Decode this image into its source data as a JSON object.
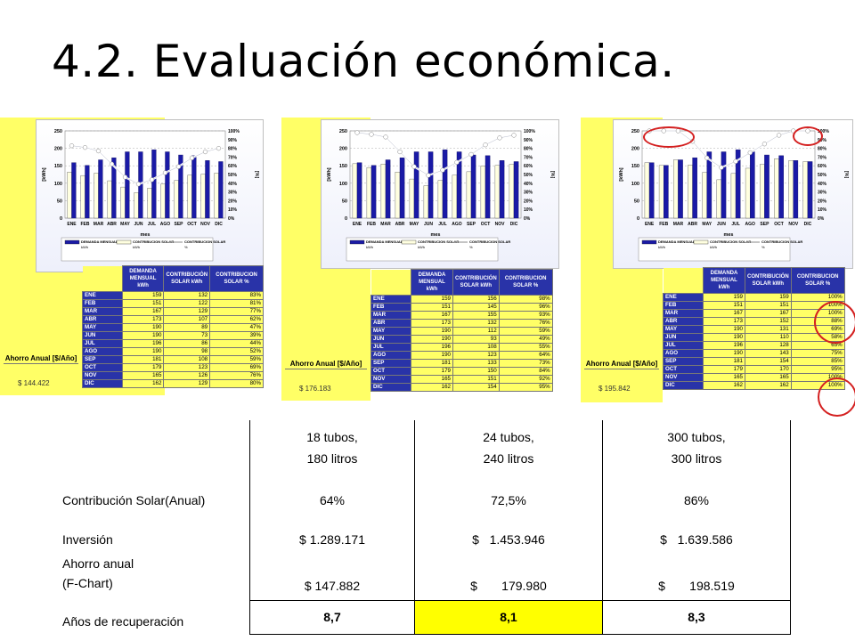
{
  "title": "4.2. Evaluación económica.",
  "chart_data": [
    {
      "type": "bar",
      "ylabel": "[kWh]",
      "y2label": "[%]",
      "xlabel": "mes",
      "ylim": [
        0,
        250
      ],
      "y2lim": [
        0,
        100
      ],
      "yticks": [
        "0",
        "50",
        "100",
        "150",
        "200",
        "250"
      ],
      "y2ticks": [
        "0%",
        "10%",
        "20%",
        "30%",
        "40%",
        "50%",
        "60%",
        "70%",
        "80%",
        "90%",
        "100%"
      ],
      "categories": [
        "ENE",
        "FEB",
        "MAR",
        "ABR",
        "MAY",
        "JUN",
        "JUL",
        "AGO",
        "SEP",
        "OCT",
        "NOV",
        "DIC"
      ],
      "series": [
        {
          "name": "DEMANDA MENSUAL",
          "unit": "kWh",
          "color": "#1a1aa6",
          "values": [
            159,
            151,
            167,
            173,
            190,
            190,
            196,
            190,
            181,
            179,
            165,
            162
          ]
        },
        {
          "name": "CONTRIBUCION SOLAR",
          "unit": "kWh",
          "color": "#ffffe0",
          "values": [
            132,
            122,
            129,
            107,
            89,
            73,
            86,
            98,
            108,
            123,
            126,
            129
          ]
        },
        {
          "name": "CONTRIBUCION SOLAR",
          "unit": "%",
          "color": "#ffffff",
          "values": [
            83,
            81,
            77,
            62,
            47,
            39,
            44,
            52,
            59,
            69,
            76,
            80
          ]
        }
      ],
      "table": {
        "headers": [
          "DEMANDA MENSUAL kWh",
          "CONTRIBUCIÓN SOLAR kWh",
          "CONTRIBUCION SOLAR %"
        ],
        "rows": [
          [
            "ENE",
            "159",
            "132",
            "83%"
          ],
          [
            "FEB",
            "151",
            "122",
            "81%"
          ],
          [
            "MAR",
            "167",
            "129",
            "77%"
          ],
          [
            "ABR",
            "173",
            "107",
            "62%"
          ],
          [
            "MAY",
            "190",
            "89",
            "47%"
          ],
          [
            "JUN",
            "190",
            "73",
            "39%"
          ],
          [
            "JUL",
            "196",
            "86",
            "44%"
          ],
          [
            "AGO",
            "190",
            "98",
            "52%"
          ],
          [
            "SEP",
            "181",
            "108",
            "59%"
          ],
          [
            "OCT",
            "179",
            "123",
            "69%"
          ],
          [
            "NOV",
            "165",
            "126",
            "76%"
          ],
          [
            "DIC",
            "162",
            "129",
            "80%"
          ]
        ]
      },
      "ahorro_label": "Ahorro Anual [$/Año]",
      "ahorro_value": "$ 144.422"
    },
    {
      "type": "bar",
      "ylabel": "[kWh]",
      "y2label": "[%]",
      "xlabel": "mes",
      "ylim": [
        0,
        250
      ],
      "y2lim": [
        0,
        100
      ],
      "yticks": [
        "0",
        "50",
        "100",
        "150",
        "200",
        "250"
      ],
      "y2ticks": [
        "0%",
        "10%",
        "20%",
        "30%",
        "40%",
        "50%",
        "60%",
        "70%",
        "80%",
        "90%",
        "100%"
      ],
      "categories": [
        "ENE",
        "FEB",
        "MAR",
        "ABR",
        "MAY",
        "JUN",
        "JUL",
        "AGO",
        "SEP",
        "OCT",
        "NOV",
        "DIC"
      ],
      "series": [
        {
          "name": "DEMANDA MENSUAL",
          "unit": "kWh",
          "color": "#1a1aa6",
          "values": [
            159,
            151,
            167,
            173,
            190,
            190,
            196,
            190,
            181,
            179,
            165,
            162
          ]
        },
        {
          "name": "CONTRIBUCION SOLAR",
          "unit": "kWh",
          "color": "#ffffe0",
          "values": [
            156,
            145,
            155,
            132,
            112,
            93,
            108,
            123,
            133,
            150,
            151,
            154
          ]
        },
        {
          "name": "CONTRIBUCION SOLAR",
          "unit": "%",
          "color": "#ffffff",
          "values": [
            98,
            96,
            93,
            76,
            59,
            49,
            55,
            64,
            73,
            84,
            92,
            95
          ]
        }
      ],
      "table": {
        "headers": [
          "DEMANDA MENSUAL kWh",
          "CONTRIBUCIÓN SOLAR kWh",
          "CONTRIBUCION SOLAR %"
        ],
        "rows": [
          [
            "ENE",
            "159",
            "156",
            "98%"
          ],
          [
            "FEB",
            "151",
            "145",
            "96%"
          ],
          [
            "MAR",
            "167",
            "155",
            "93%"
          ],
          [
            "ABR",
            "173",
            "132",
            "76%"
          ],
          [
            "MAY",
            "190",
            "112",
            "59%"
          ],
          [
            "JUN",
            "190",
            "93",
            "49%"
          ],
          [
            "JUL",
            "196",
            "108",
            "55%"
          ],
          [
            "AGO",
            "190",
            "123",
            "64%"
          ],
          [
            "SEP",
            "181",
            "133",
            "73%"
          ],
          [
            "OCT",
            "179",
            "150",
            "84%"
          ],
          [
            "NOV",
            "165",
            "151",
            "92%"
          ],
          [
            "DIC",
            "162",
            "154",
            "95%"
          ]
        ]
      },
      "ahorro_label": "Ahorro Anual [$/Año]",
      "ahorro_value": "$ 176.183"
    },
    {
      "type": "bar",
      "ylabel": "[kWh]",
      "y2label": "[%]",
      "xlabel": "mes",
      "ylim": [
        0,
        250
      ],
      "y2lim": [
        0,
        100
      ],
      "yticks": [
        "0",
        "50",
        "100",
        "150",
        "200",
        "250"
      ],
      "y2ticks": [
        "0%",
        "10%",
        "20%",
        "30%",
        "40%",
        "50%",
        "60%",
        "70%",
        "80%",
        "90%",
        "100%"
      ],
      "categories": [
        "ENE",
        "FEB",
        "MAR",
        "ABR",
        "MAY",
        "JUN",
        "JUL",
        "AGO",
        "SEP",
        "OCT",
        "NOV",
        "DIC"
      ],
      "series": [
        {
          "name": "DEMANDA MENSUAL",
          "unit": "kWh",
          "color": "#1a1aa6",
          "values": [
            159,
            151,
            167,
            173,
            190,
            190,
            196,
            190,
            181,
            179,
            165,
            162
          ]
        },
        {
          "name": "CONTRIBUCION SOLAR",
          "unit": "kWh",
          "color": "#ffffe0",
          "values": [
            159,
            151,
            167,
            152,
            131,
            110,
            128,
            143,
            154,
            170,
            165,
            162
          ]
        },
        {
          "name": "CONTRIBUCION SOLAR",
          "unit": "%",
          "color": "#ffffff",
          "values": [
            100,
            100,
            100,
            88,
            69,
            58,
            65,
            75,
            85,
            95,
            100,
            100
          ]
        }
      ],
      "table": {
        "headers": [
          "DEMANDA MENSUAL kWh",
          "CONTRIBUCIÓN SOLAR kWh",
          "CONTRIBUCION SOLAR %"
        ],
        "rows": [
          [
            "ENE",
            "159",
            "159",
            "100%"
          ],
          [
            "FEB",
            "151",
            "151",
            "100%"
          ],
          [
            "MAR",
            "167",
            "167",
            "100%"
          ],
          [
            "ABR",
            "173",
            "152",
            "88%"
          ],
          [
            "MAY",
            "190",
            "131",
            "69%"
          ],
          [
            "JUN",
            "190",
            "110",
            "58%"
          ],
          [
            "JUL",
            "196",
            "128",
            "65%"
          ],
          [
            "AGO",
            "190",
            "143",
            "75%"
          ],
          [
            "SEP",
            "181",
            "154",
            "85%"
          ],
          [
            "OCT",
            "179",
            "170",
            "95%"
          ],
          [
            "NOV",
            "165",
            "165",
            "100%"
          ],
          [
            "DIC",
            "162",
            "162",
            "100%"
          ]
        ]
      },
      "ahorro_label": "Ahorro Anual [$/Año]",
      "ahorro_value": "$ 195.842"
    }
  ],
  "summary": {
    "headers": [
      {
        "line1": "18 tubos,",
        "line2": "180 litros"
      },
      {
        "line1": "24 tubos,",
        "line2": "240 litros"
      },
      {
        "line1": "300 tubos,",
        "line2": "300 litros"
      }
    ],
    "rows": [
      {
        "label": "Contribución Solar(Anual)",
        "values": [
          "64%",
          "72,5%",
          "86%"
        ]
      },
      {
        "label": "Inversión",
        "values": [
          "$ 1.289.171",
          "$   1.453.946",
          "$   1.639.586"
        ]
      },
      {
        "label_line1": "Ahorro anual",
        "label_line2": "(F-Chart)",
        "values": [
          "$ 147.882",
          "$       179.980",
          "$       198.519"
        ]
      },
      {
        "label": "Años de recuperación",
        "values": [
          "8,7",
          "8,1",
          "8,3"
        ]
      }
    ],
    "highlight_color": "#ffff00"
  }
}
